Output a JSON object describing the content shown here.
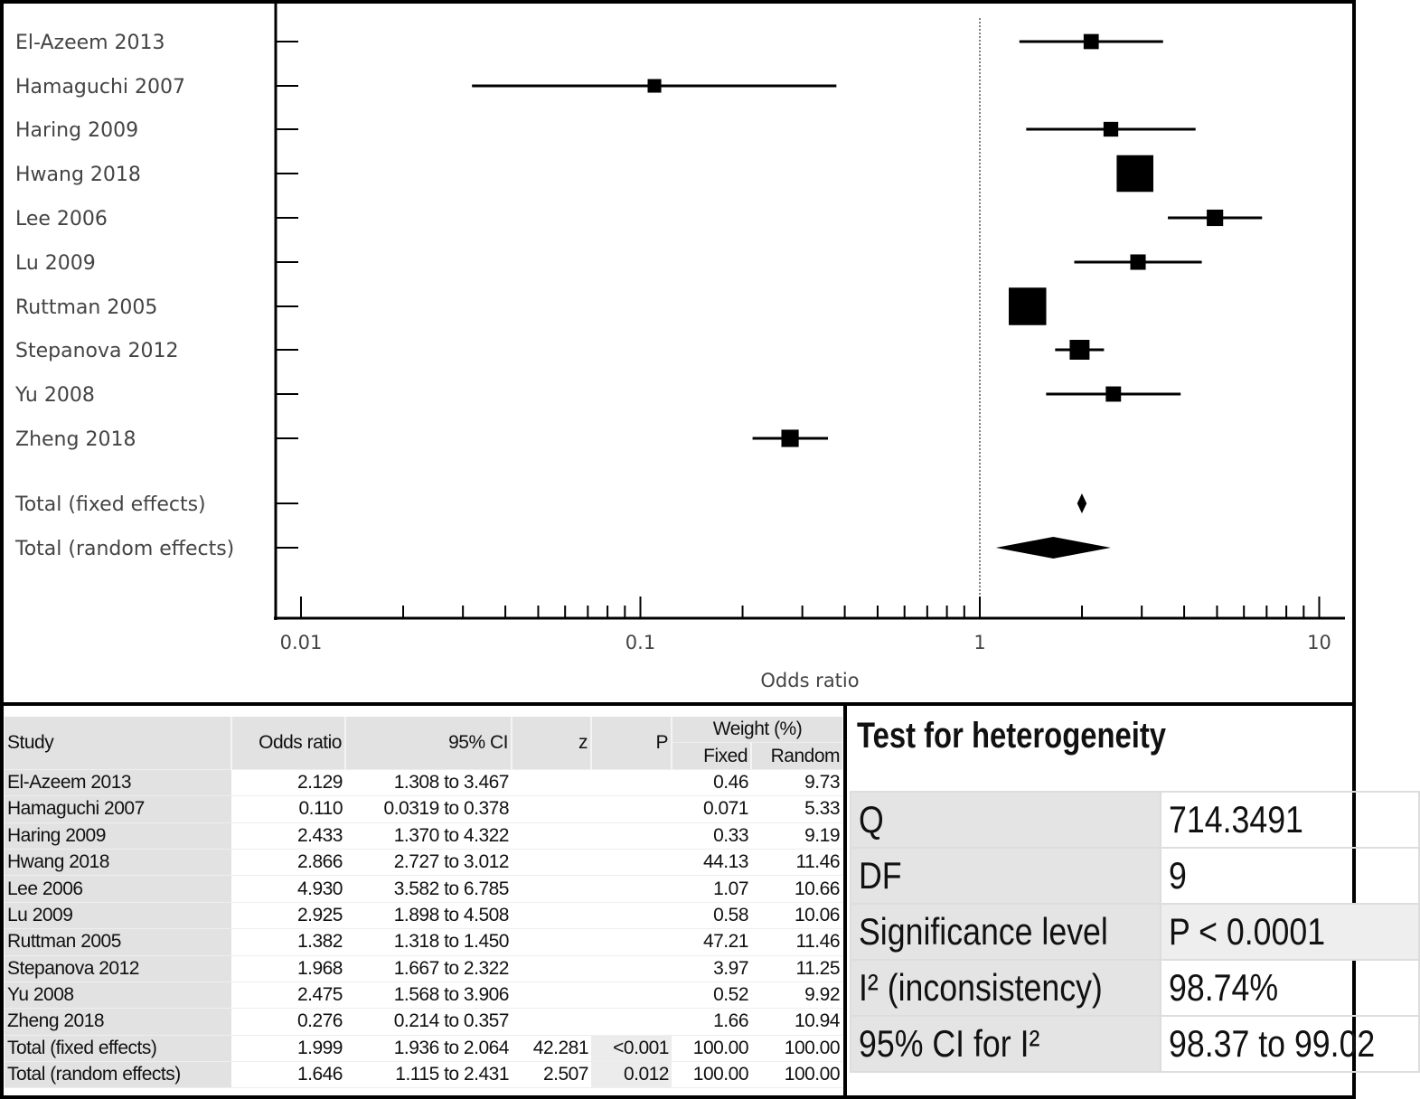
{
  "chart_data": {
    "type": "forest",
    "xlabel": "Odds ratio",
    "x_scale": "log",
    "xlim": [
      0.01,
      10
    ],
    "x_ticks": [
      "0.01",
      "0.1",
      "1",
      "10"
    ],
    "reference_line": 1,
    "studies": [
      {
        "label": "El-Azeem 2013",
        "or": 2.129,
        "lo": 1.308,
        "hi": 3.467,
        "weight_fixed": 0.46
      },
      {
        "label": "Hamaguchi 2007",
        "or": 0.11,
        "lo": 0.0319,
        "hi": 0.378,
        "weight_fixed": 0.071
      },
      {
        "label": "Haring 2009",
        "or": 2.433,
        "lo": 1.37,
        "hi": 4.322,
        "weight_fixed": 0.33
      },
      {
        "label": "Hwang 2018",
        "or": 2.866,
        "lo": 2.727,
        "hi": 3.012,
        "weight_fixed": 44.13
      },
      {
        "label": "Lee 2006",
        "or": 4.93,
        "lo": 3.582,
        "hi": 6.785,
        "weight_fixed": 1.07
      },
      {
        "label": "Lu 2009",
        "or": 2.925,
        "lo": 1.898,
        "hi": 4.508,
        "weight_fixed": 0.58
      },
      {
        "label": "Ruttman 2005",
        "or": 1.382,
        "lo": 1.318,
        "hi": 1.45,
        "weight_fixed": 47.21
      },
      {
        "label": "Stepanova 2012",
        "or": 1.968,
        "lo": 1.667,
        "hi": 2.322,
        "weight_fixed": 3.97
      },
      {
        "label": "Yu 2008",
        "or": 2.475,
        "lo": 1.568,
        "hi": 3.906,
        "weight_fixed": 0.52
      },
      {
        "label": "Zheng 2018",
        "or": 0.276,
        "lo": 0.214,
        "hi": 0.357,
        "weight_fixed": 1.66
      }
    ],
    "totals": [
      {
        "label": "Total (fixed effects)",
        "or": 1.999,
        "lo": 1.936,
        "hi": 2.064
      },
      {
        "label": "Total (random effects)",
        "or": 1.646,
        "lo": 1.115,
        "hi": 2.431
      }
    ]
  },
  "results_table": {
    "headers": {
      "study": "Study",
      "or": "Odds ratio",
      "ci": "95% CI",
      "z": "z",
      "p": "P",
      "weight": "Weight (%)",
      "fixed": "Fixed",
      "random": "Random"
    },
    "rows": [
      [
        "El-Azeem 2013",
        "2.129",
        "1.308 to 3.467",
        "",
        "",
        "0.46",
        "9.73"
      ],
      [
        "Hamaguchi 2007",
        "0.110",
        "0.0319 to 0.378",
        "",
        "",
        "0.071",
        "5.33"
      ],
      [
        "Haring 2009",
        "2.433",
        "1.370 to 4.322",
        "",
        "",
        "0.33",
        "9.19"
      ],
      [
        "Hwang 2018",
        "2.866",
        "2.727 to 3.012",
        "",
        "",
        "44.13",
        "11.46"
      ],
      [
        "Lee 2006",
        "4.930",
        "3.582 to 6.785",
        "",
        "",
        "1.07",
        "10.66"
      ],
      [
        "Lu 2009",
        "2.925",
        "1.898 to 4.508",
        "",
        "",
        "0.58",
        "10.06"
      ],
      [
        "Ruttman 2005",
        "1.382",
        "1.318 to 1.450",
        "",
        "",
        "47.21",
        "11.46"
      ],
      [
        "Stepanova 2012",
        "1.968",
        "1.667 to 2.322",
        "",
        "",
        "3.97",
        "11.25"
      ],
      [
        "Yu 2008",
        "2.475",
        "1.568 to 3.906",
        "",
        "",
        "0.52",
        "9.92"
      ],
      [
        "Zheng 2018",
        "0.276",
        "0.214 to 0.357",
        "",
        "",
        "1.66",
        "10.94"
      ],
      [
        "Total (fixed effects)",
        "1.999",
        "1.936 to 2.064",
        "42.281",
        "<0.001",
        "100.00",
        "100.00"
      ],
      [
        "Total (random effects)",
        "1.646",
        "1.115 to 2.431",
        "2.507",
        "0.012",
        "100.00",
        "100.00"
      ]
    ]
  },
  "heterogeneity": {
    "title": "Test for heterogeneity",
    "rows": [
      {
        "key": "Q",
        "value": "714.3491"
      },
      {
        "key": "DF",
        "value": "9"
      },
      {
        "key": "Significance level",
        "value": "P < 0.0001"
      },
      {
        "key": "I² (inconsistency)",
        "value": "98.74%"
      },
      {
        "key": "95% CI for I²",
        "value": "98.37 to 99.02"
      }
    ]
  }
}
